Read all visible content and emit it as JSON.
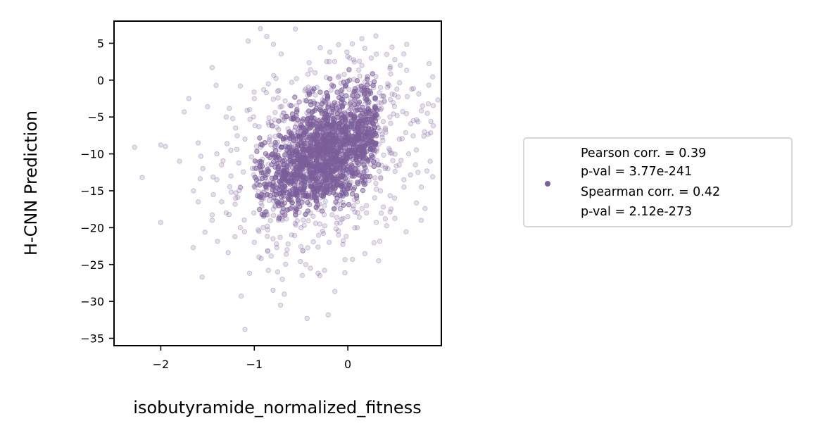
{
  "chart_data": {
    "type": "scatter",
    "title": "",
    "xlabel": "isobutyramide_normalized_fitness",
    "ylabel": "H-CNN Prediction",
    "xlim": [
      -2.5,
      1.0
    ],
    "ylim": [
      -36,
      8
    ],
    "xticks": [
      -2,
      -1,
      0
    ],
    "xtick_labels": [
      "−2",
      "−1",
      "0"
    ],
    "yticks": [
      5,
      0,
      -5,
      -10,
      -15,
      -20,
      -25,
      -30,
      -35
    ],
    "ytick_labels": [
      "5",
      "0",
      "−5",
      "−10",
      "−15",
      "−20",
      "−25",
      "−30",
      "−35"
    ],
    "grid": false,
    "legend_position": "right",
    "marker_color": "#7d5f9a",
    "marker_alpha": 0.2,
    "series": [
      {
        "values": [
          [
            -2.28,
            -9.1
          ],
          [
            -2.2,
            -13.2
          ],
          [
            -2.0,
            -8.8
          ],
          [
            -1.95,
            -9.0
          ],
          [
            -2.0,
            -19.3
          ],
          [
            -1.8,
            -11.0
          ],
          [
            -1.75,
            -4.3
          ],
          [
            -1.7,
            -2.5
          ],
          [
            -1.65,
            -15.0
          ],
          [
            -1.6,
            -8.5
          ],
          [
            -1.55,
            -12.0
          ],
          [
            -1.5,
            -3.6
          ],
          [
            -1.45,
            1.7
          ],
          [
            -1.45,
            -19.0
          ],
          [
            -1.4,
            -10.0
          ],
          [
            -1.35,
            -16.5
          ],
          [
            -1.3,
            -5.0
          ],
          [
            -1.3,
            -18.0
          ],
          [
            -1.25,
            -13.0
          ],
          [
            -1.2,
            -6.5
          ],
          [
            -1.15,
            -0.8
          ],
          [
            -1.15,
            -20.0
          ],
          [
            -1.1,
            -33.8
          ],
          [
            -1.05,
            -26.2
          ],
          [
            -1.0,
            -22.0
          ],
          [
            -0.95,
            -24.0
          ],
          [
            -0.9,
            -1.3
          ],
          [
            -0.9,
            -16.0
          ],
          [
            -0.85,
            -0.5
          ],
          [
            -0.85,
            -25.8
          ],
          [
            -0.8,
            -28.5
          ],
          [
            -0.75,
            -26.0
          ],
          [
            -0.72,
            -30.5
          ],
          [
            -0.7,
            -27.0
          ],
          [
            -0.68,
            -29.0
          ],
          [
            -0.65,
            -23.0
          ],
          [
            -0.55,
            0.2
          ],
          [
            -0.45,
            -25.0
          ],
          [
            -0.4,
            -25.5
          ],
          [
            -0.3,
            -26.5
          ],
          [
            -0.25,
            -25.8
          ],
          [
            -0.2,
            -22.0
          ],
          [
            -0.1,
            -21.0
          ],
          [
            0.05,
            -24.3
          ],
          [
            0.1,
            -20.0
          ],
          [
            0.2,
            -18.0
          ],
          [
            0.25,
            3.0
          ],
          [
            0.3,
            0.5
          ],
          [
            0.35,
            -1.0
          ],
          [
            0.3,
            6.0
          ],
          [
            0.35,
            -15.0
          ],
          [
            0.4,
            -12.0
          ],
          [
            0.45,
            -5.0
          ],
          [
            0.5,
            -2.0
          ],
          [
            0.55,
            -8.0
          ],
          [
            0.6,
            -14.5
          ],
          [
            0.65,
            -10.0
          ],
          [
            0.7,
            -5.5
          ],
          [
            0.75,
            -12.5
          ],
          [
            0.8,
            -3.5
          ],
          [
            0.82,
            -7.0
          ],
          [
            0.85,
            -4.5
          ],
          [
            0.88,
            -11.0
          ],
          [
            0.6,
            -13.5
          ],
          [
            0.5,
            -16.0
          ],
          [
            -0.1,
            4.8
          ],
          [
            -0.2,
            2.5
          ],
          [
            0.0,
            3.2
          ],
          [
            0.15,
            2.0
          ],
          [
            -0.35,
            1.0
          ],
          [
            -1.0,
            -12.0
          ],
          [
            -1.1,
            -8.0
          ],
          [
            -1.2,
            -16.0
          ],
          [
            -1.05,
            -4.0
          ],
          [
            -1.35,
            -11.5
          ],
          [
            -1.6,
            -16.5
          ],
          [
            -1.4,
            -13.5
          ],
          [
            -0.9,
            -18.5
          ],
          [
            -0.95,
            -20.5
          ],
          [
            -0.8,
            -21.5
          ],
          [
            -0.6,
            -21.0
          ],
          [
            -0.5,
            -20.0
          ],
          [
            -0.3,
            -19.5
          ],
          [
            0.0,
            -18.5
          ],
          [
            0.2,
            -17.0
          ],
          [
            0.35,
            -4.0
          ],
          [
            0.45,
            -9.5
          ],
          [
            0.4,
            -6.5
          ],
          [
            0.3,
            -14.0
          ],
          [
            0.55,
            -11.5
          ],
          [
            -0.7,
            -19.0
          ],
          [
            -0.4,
            -18.0
          ],
          [
            -0.15,
            -17.5
          ],
          [
            0.1,
            -16.5
          ],
          [
            -1.25,
            -9.5
          ],
          [
            -1.15,
            -14.5
          ],
          [
            -1.0,
            -2.5
          ],
          [
            -0.75,
            -1.5
          ],
          [
            -0.6,
            -0.3
          ],
          [
            -0.45,
            -1.2
          ]
        ],
        "cluster": {
          "center_x": -0.25,
          "center_y": -10.0,
          "n": 4000,
          "x_extent": [
            -0.95,
            0.35
          ],
          "y_extent": [
            -17,
            1.5
          ]
        }
      }
    ],
    "legend": {
      "lines": [
        "Pearson corr. = 0.39",
        "p-val = 3.77e-241",
        "Spearman corr. = 0.42",
        "p-val = 2.12e-273"
      ]
    }
  }
}
